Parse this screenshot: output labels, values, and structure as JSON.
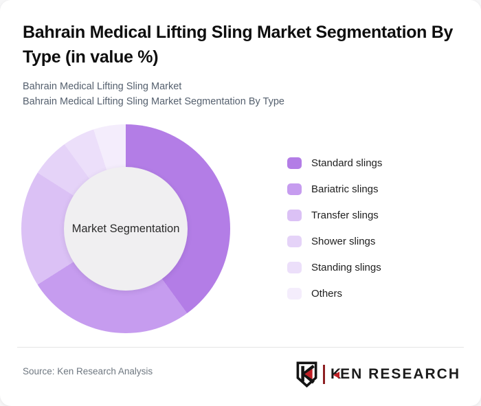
{
  "header": {
    "title": "Bahrain Medical Lifting Sling Market Segmentation By Type (in value %)",
    "subtitle_line1": "Bahrain Medical Lifting Sling Market",
    "subtitle_line2": "Bahrain Medical Lifting Sling Market Segmentation By Type"
  },
  "chart_data": {
    "type": "pie",
    "variant": "donut",
    "title": "Bahrain Medical Lifting Sling Market Segmentation By Type (in value %)",
    "center_label": "Market Segmentation",
    "categories": [
      "Standard slings",
      "Bariatric slings",
      "Transfer slings",
      "Shower slings",
      "Standing slings",
      "Others"
    ],
    "values": [
      40,
      26,
      18,
      6,
      5,
      5
    ],
    "colors": [
      "#b37de6",
      "#c69cef",
      "#dbc1f5",
      "#e5d3f8",
      "#ecdffa",
      "#f4edfc"
    ],
    "start_angle_deg": 0,
    "direction": "clockwise",
    "inner_radius_ratio": 0.59,
    "hole_color": "#f0eff1",
    "legend_position": "right",
    "data_labels_shown": false
  },
  "footer": {
    "source": "Source: Ken Research Analysis",
    "logo": {
      "brand_k": "K",
      "brand_rest": "EN RESEARCH",
      "accent_red": "#c01f25"
    }
  }
}
